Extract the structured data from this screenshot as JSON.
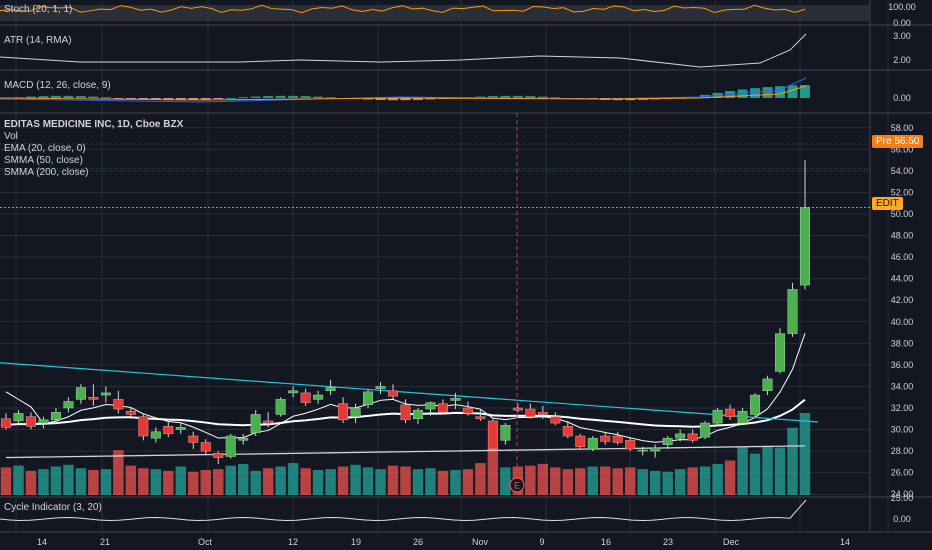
{
  "panes": {
    "stoch": {
      "label": "Stoch (20, 1, 1)",
      "ticks": [
        "100.00",
        "0.00"
      ]
    },
    "atr": {
      "label": "ATR (14, RMA)",
      "ticks": [
        "3.00",
        "2.00"
      ]
    },
    "macd": {
      "label": "MACD (12, 26, close, 9)",
      "ticks": [
        "0.00"
      ]
    },
    "main": {
      "title": "EDITAS MEDICINE INC, 1D, Cboe BZX",
      "legend": [
        "Vol",
        "EMA (20, close, 0)",
        "SMMA (50, close)",
        "SMMA (200, close)"
      ],
      "ticks": [
        "58.00",
        "56.00",
        "54.00",
        "52.00",
        "50.00",
        "48.00",
        "46.00",
        "44.00",
        "42.00",
        "40.00",
        "38.00",
        "36.00",
        "34.00",
        "32.00",
        "30.00",
        "28.00",
        "26.00",
        "24.00"
      ],
      "pre_label": "Pre",
      "pre_value": "56.50",
      "symbol_tag": "EDIT",
      "earnings_marker": "E"
    },
    "cycle": {
      "label": "Cycle Indicator (3, 20)",
      "ticks": [
        "25.00",
        "0.00"
      ]
    }
  },
  "x_axis": {
    "labels": [
      "14",
      "21",
      "Oct",
      "12",
      "19",
      "26",
      "Nov",
      "9",
      "16",
      "23",
      "Dec",
      "14"
    ]
  },
  "colors": {
    "up": "#26a69a",
    "down": "#ef5350",
    "candle_up": "#4caf50",
    "candle_down": "#e53935",
    "ema": "#ffffff",
    "smma50": "#ffffff",
    "smma200": "#d1d4dc",
    "trendline": "#26c6da",
    "stoch": "#ff9800",
    "atr": "#d1d4dc",
    "macd": "#2962ff",
    "price_line": "#f57f17"
  },
  "chart_data": {
    "type": "candlestick",
    "title": "EDITAS MEDICINE INC, 1D, Cboe BZX",
    "ylim": [
      23,
      59
    ],
    "candles": [
      [
        31.0,
        31.5,
        30.0,
        30.2
      ],
      [
        30.8,
        31.8,
        30.5,
        31.5
      ],
      [
        31.2,
        31.6,
        30.0,
        30.3
      ],
      [
        30.6,
        31.2,
        30.1,
        30.9
      ],
      [
        30.9,
        32.0,
        30.7,
        31.6
      ],
      [
        32.0,
        33.0,
        31.6,
        32.6
      ],
      [
        32.8,
        34.2,
        32.4,
        33.9
      ],
      [
        33.0,
        34.2,
        32.2,
        32.8
      ],
      [
        33.2,
        34.0,
        32.5,
        33.4
      ],
      [
        32.8,
        33.6,
        31.5,
        31.9
      ],
      [
        31.7,
        32.0,
        31.0,
        31.4
      ],
      [
        31.2,
        31.5,
        29.0,
        29.4
      ],
      [
        29.2,
        30.2,
        28.8,
        29.8
      ],
      [
        30.3,
        30.8,
        29.3,
        29.6
      ],
      [
        30.0,
        30.6,
        29.6,
        30.2
      ],
      [
        29.4,
        29.8,
        28.2,
        28.8
      ],
      [
        28.8,
        29.1,
        27.6,
        28.0
      ],
      [
        27.8,
        28.0,
        26.8,
        27.4
      ],
      [
        27.5,
        29.6,
        27.3,
        29.4
      ],
      [
        29.0,
        29.6,
        28.6,
        29.2
      ],
      [
        29.7,
        31.8,
        29.4,
        31.4
      ],
      [
        30.8,
        31.6,
        30.2,
        30.6
      ],
      [
        31.4,
        33.0,
        31.2,
        32.8
      ],
      [
        33.4,
        34.0,
        33.0,
        33.6
      ],
      [
        33.4,
        33.8,
        32.2,
        32.5
      ],
      [
        32.8,
        33.6,
        32.4,
        33.2
      ],
      [
        33.6,
        34.6,
        33.2,
        33.9
      ],
      [
        32.4,
        33.0,
        30.6,
        30.9
      ],
      [
        31.2,
        32.4,
        30.6,
        32.0
      ],
      [
        32.3,
        33.7,
        32.0,
        33.5
      ],
      [
        33.8,
        34.4,
        33.3,
        34.0
      ],
      [
        33.6,
        34.2,
        32.8,
        33.1
      ],
      [
        32.3,
        32.8,
        30.6,
        30.9
      ],
      [
        31.0,
        32.0,
        30.5,
        31.8
      ],
      [
        31.9,
        32.6,
        31.3,
        32.5
      ],
      [
        32.4,
        32.8,
        31.4,
        31.6
      ],
      [
        32.7,
        33.4,
        31.9,
        32.9
      ],
      [
        32.0,
        32.6,
        31.3,
        31.5
      ],
      [
        31.2,
        31.8,
        30.8,
        31.0
      ],
      [
        30.8,
        31.0,
        28.0,
        28.2
      ],
      [
        29.0,
        30.6,
        28.6,
        30.4
      ],
      [
        32.0,
        32.4,
        31.6,
        31.8
      ],
      [
        31.9,
        32.4,
        31.0,
        31.2
      ],
      [
        31.6,
        32.2,
        31.0,
        31.4
      ],
      [
        31.2,
        31.6,
        30.4,
        30.6
      ],
      [
        30.3,
        30.8,
        29.2,
        29.4
      ],
      [
        29.4,
        29.6,
        28.2,
        28.4
      ],
      [
        28.2,
        29.4,
        28.0,
        29.2
      ],
      [
        29.4,
        29.8,
        28.6,
        28.9
      ],
      [
        29.4,
        29.8,
        28.6,
        28.8
      ],
      [
        29.0,
        29.2,
        28.0,
        28.2
      ],
      [
        28.0,
        28.4,
        27.6,
        28.1
      ],
      [
        28.0,
        28.6,
        27.4,
        28.3
      ],
      [
        28.6,
        29.4,
        28.2,
        29.2
      ],
      [
        29.2,
        30.0,
        28.9,
        29.6
      ],
      [
        29.6,
        30.0,
        28.8,
        29.0
      ],
      [
        29.3,
        30.8,
        29.1,
        30.6
      ],
      [
        30.6,
        32.0,
        30.4,
        31.8
      ],
      [
        31.9,
        32.3,
        30.9,
        31.2
      ],
      [
        30.6,
        32.0,
        30.5,
        31.7
      ],
      [
        31.4,
        33.4,
        31.2,
        33.2
      ],
      [
        33.6,
        35.0,
        33.2,
        34.7
      ],
      [
        35.4,
        39.4,
        35.2,
        38.9
      ],
      [
        38.9,
        43.6,
        38.6,
        43.0
      ],
      [
        43.4,
        55.0,
        43.0,
        50.6
      ]
    ],
    "volume": [
      32,
      34,
      28,
      30,
      33,
      35,
      31,
      29,
      30,
      52,
      34,
      31,
      30,
      28,
      33,
      27,
      29,
      30,
      34,
      36,
      28,
      31,
      33,
      37,
      31,
      29,
      30,
      33,
      35,
      32,
      30,
      34,
      33,
      30,
      31,
      28,
      29,
      30,
      37,
      55,
      32,
      33,
      34,
      36,
      32,
      30,
      31,
      33,
      33,
      31,
      32,
      30,
      28,
      27,
      30,
      32,
      33,
      36,
      40,
      56,
      48,
      57,
      55,
      78,
      95
    ]
  }
}
